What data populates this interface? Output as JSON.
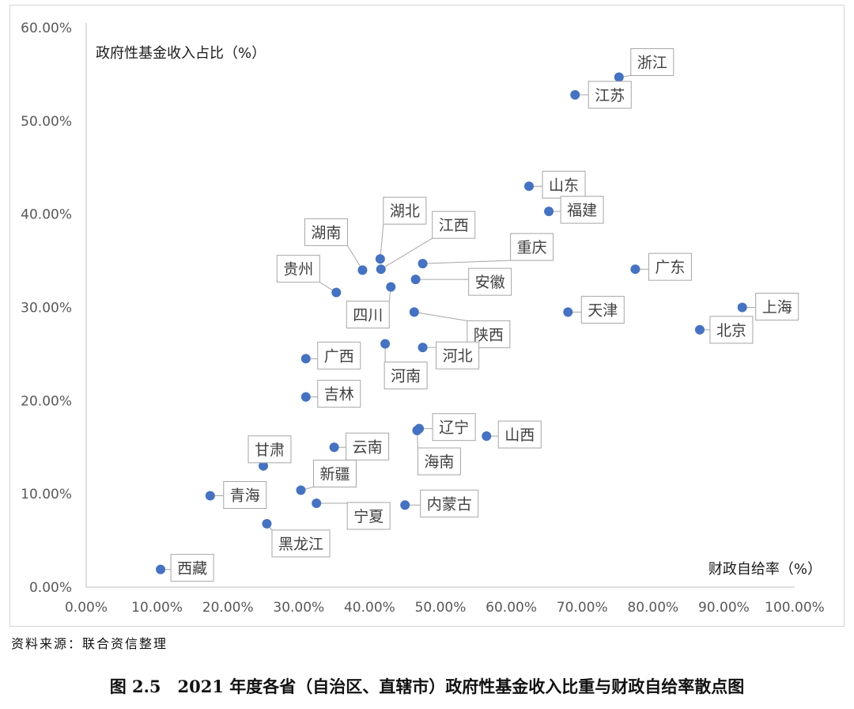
{
  "chart_data": {
    "type": "scatter",
    "ylabel": "政府性基金收入占比（%）",
    "xlabel": "财政自给率（%）",
    "xlim": [
      0,
      100
    ],
    "ylim": [
      0,
      60
    ],
    "x_ticks": [
      "0.00%",
      "10.00%",
      "20.00%",
      "30.00%",
      "40.00%",
      "50.00%",
      "60.00%",
      "70.00%",
      "80.00%",
      "90.00%",
      "100.00%"
    ],
    "y_ticks": [
      "0.00%",
      "10.00%",
      "20.00%",
      "30.00%",
      "40.00%",
      "50.00%",
      "60.00%"
    ],
    "grid": false,
    "marker_color": "#4472c4",
    "points": [
      {
        "label": "浙江",
        "x": 75.2,
        "y": 54.7
      },
      {
        "label": "江苏",
        "x": 69.0,
        "y": 52.8
      },
      {
        "label": "山东",
        "x": 62.5,
        "y": 43.0
      },
      {
        "label": "福建",
        "x": 65.3,
        "y": 40.3
      },
      {
        "label": "广东",
        "x": 77.5,
        "y": 34.1
      },
      {
        "label": "上海",
        "x": 92.6,
        "y": 30.0
      },
      {
        "label": "北京",
        "x": 86.6,
        "y": 27.6
      },
      {
        "label": "天津",
        "x": 68.0,
        "y": 29.5
      },
      {
        "label": "湖北",
        "x": 41.5,
        "y": 35.2
      },
      {
        "label": "江西",
        "x": 41.6,
        "y": 34.1
      },
      {
        "label": "湖南",
        "x": 39.0,
        "y": 34.0
      },
      {
        "label": "重庆",
        "x": 47.5,
        "y": 34.7
      },
      {
        "label": "安徽",
        "x": 46.5,
        "y": 33.0
      },
      {
        "label": "四川",
        "x": 43.0,
        "y": 32.2
      },
      {
        "label": "贵州",
        "x": 35.3,
        "y": 31.6
      },
      {
        "label": "陕西",
        "x": 46.3,
        "y": 29.5
      },
      {
        "label": "河南",
        "x": 42.2,
        "y": 26.1
      },
      {
        "label": "河北",
        "x": 47.5,
        "y": 25.7
      },
      {
        "label": "广西",
        "x": 31.0,
        "y": 24.5
      },
      {
        "label": "吉林",
        "x": 31.0,
        "y": 20.4
      },
      {
        "label": "辽宁",
        "x": 47.0,
        "y": 17.0
      },
      {
        "label": "海南",
        "x": 46.7,
        "y": 16.8
      },
      {
        "label": "山西",
        "x": 56.5,
        "y": 16.2
      },
      {
        "label": "云南",
        "x": 35.0,
        "y": 15.0
      },
      {
        "label": "甘肃",
        "x": 25.0,
        "y": 13.0
      },
      {
        "label": "新疆",
        "x": 30.3,
        "y": 10.4
      },
      {
        "label": "青海",
        "x": 17.5,
        "y": 9.8
      },
      {
        "label": "宁夏",
        "x": 32.5,
        "y": 9.0
      },
      {
        "label": "内蒙古",
        "x": 45.0,
        "y": 8.8
      },
      {
        "label": "黑龙江",
        "x": 25.5,
        "y": 6.8
      },
      {
        "label": "西藏",
        "x": 10.5,
        "y": 1.9
      }
    ]
  },
  "source": "资料来源：联合资信整理",
  "caption": "图 2.5　2021 年度各省（自治区、直辖市）政府性基金收入比重与财政自给率散点图"
}
